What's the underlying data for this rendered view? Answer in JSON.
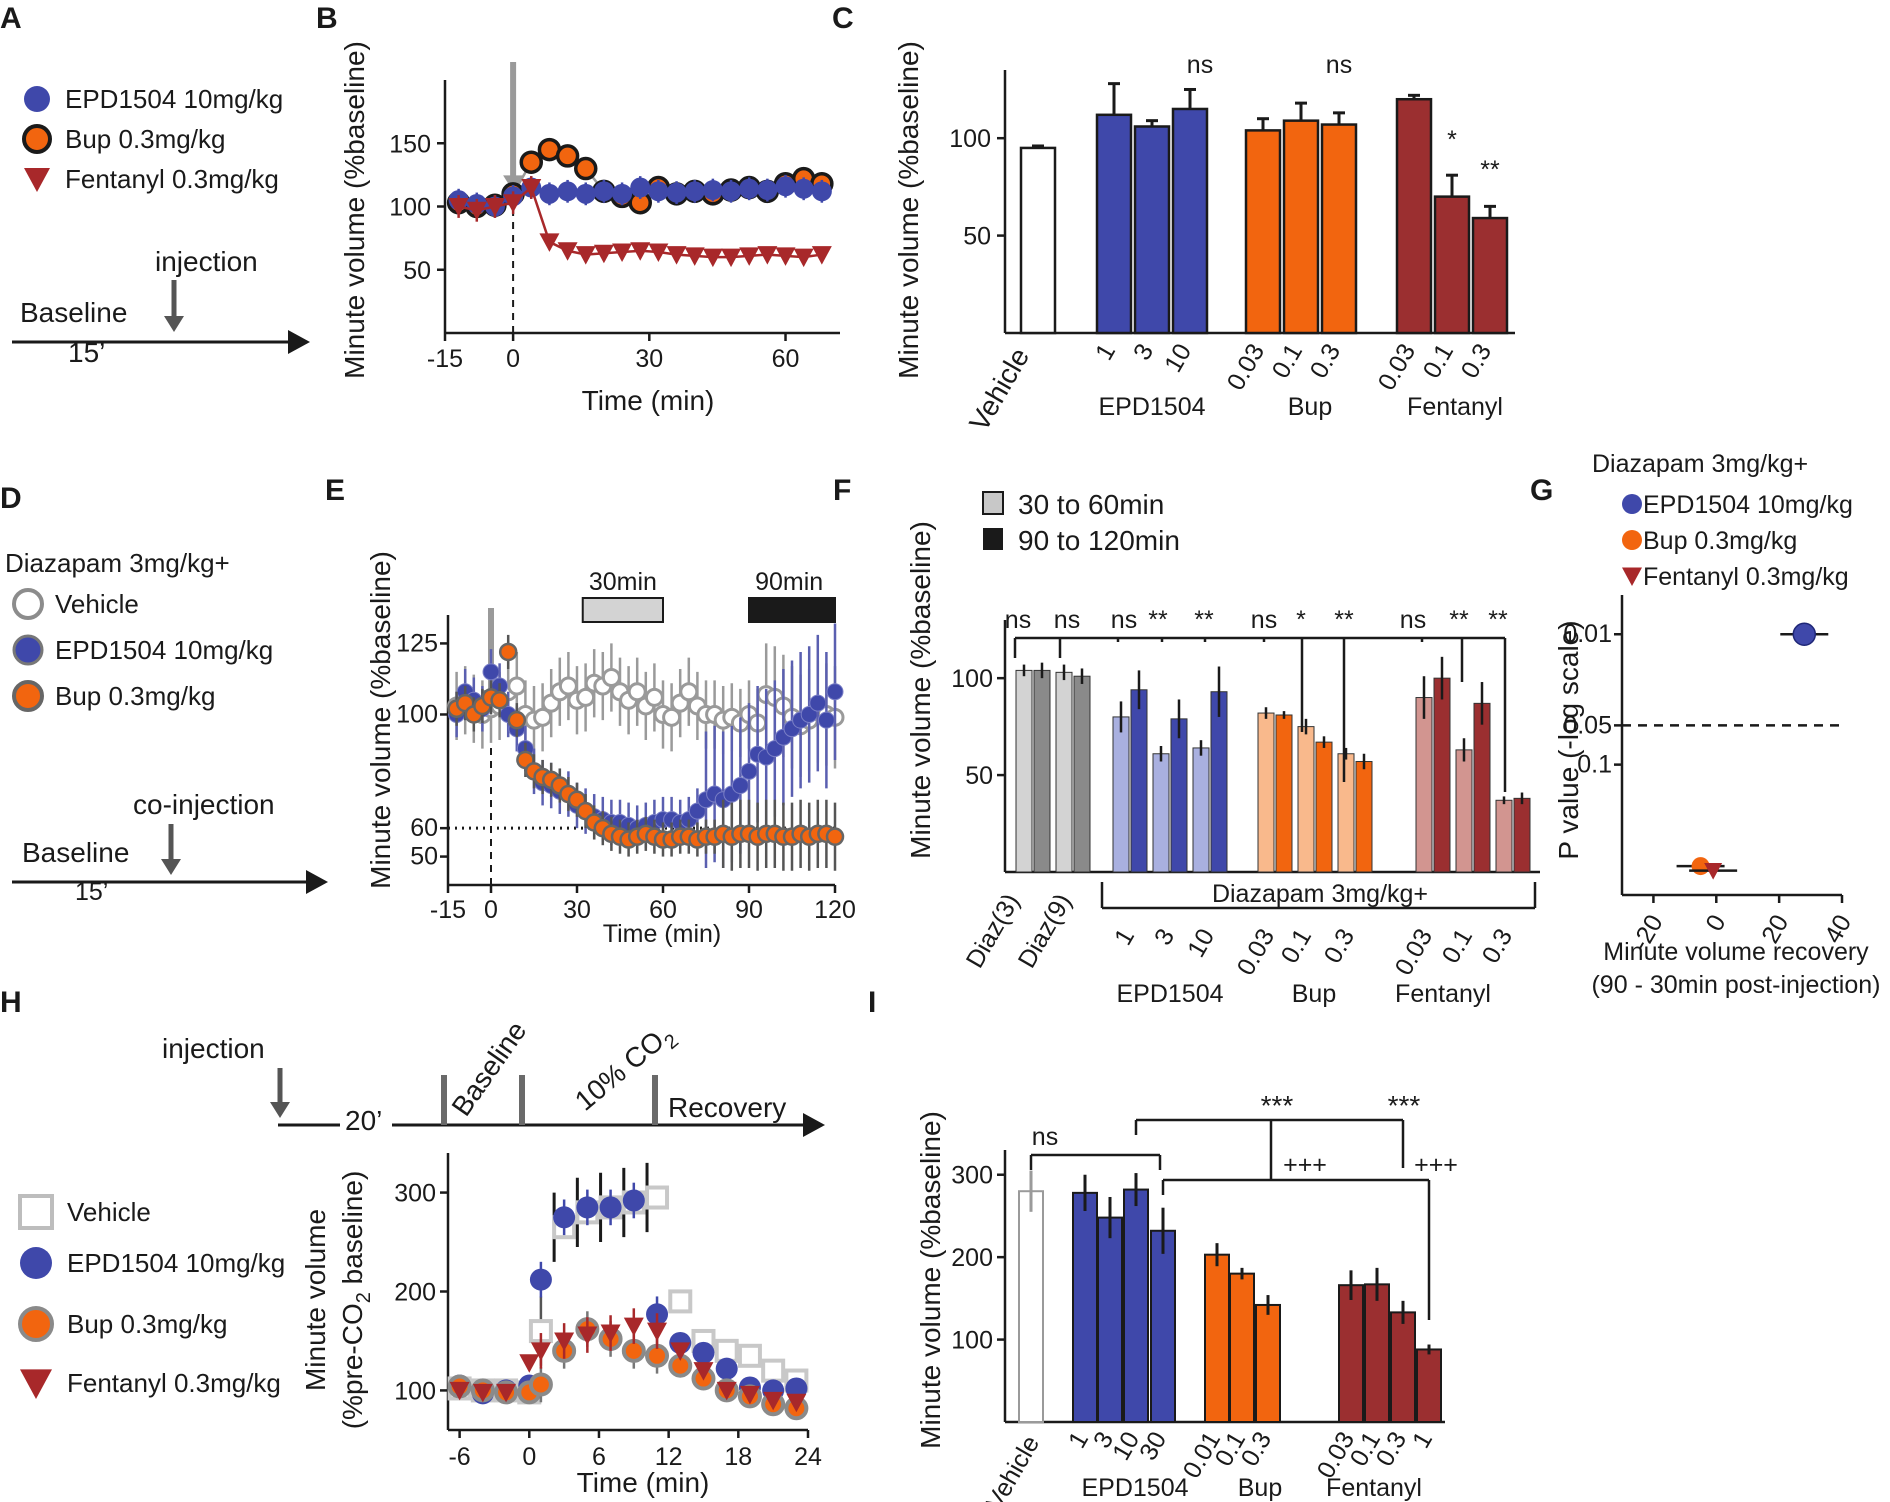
{
  "colors": {
    "blue": "#3F48AA",
    "orange": "#F2650F",
    "red": "#A8282A",
    "darkred": "#9B2F30",
    "grey": "#9a9a9a",
    "lightblue": "#A9B0E0",
    "lightorange": "#F9B98C",
    "lightred": "#D29590",
    "lightgrey": "#D3D3D3",
    "black": "#1a1a1a"
  },
  "panels": {
    "A": {
      "letter": "A",
      "legend": [
        "EPD1504 10mg/kg",
        "Bup 0.3mg/kg",
        "Fentanyl 0.3mg/kg"
      ],
      "injection": "injection",
      "baseline": "Baseline",
      "duration": "15’"
    },
    "B": {
      "letter": "B",
      "ylabel": "Minute volume (%baseline)",
      "xlabel": "Time (min)",
      "yticks": [
        "150",
        "100",
        "50"
      ],
      "xticks": [
        "-15",
        "0",
        "30",
        "60"
      ]
    },
    "C": {
      "letter": "C",
      "ylabel": "Minute volume (%baseline)",
      "yticks": [
        "100",
        "50"
      ],
      "groups": [
        "EPD1504",
        "Bup",
        "Fentanyl"
      ],
      "vehicle": "Vehicle",
      "doses": [
        "1",
        "3",
        "10",
        "0.03",
        "0.1",
        "0.3",
        "0.03",
        "0.1",
        "0.3"
      ],
      "stars": [
        "ns",
        "ns",
        "*",
        "**"
      ]
    },
    "D": {
      "letter": "D",
      "title": "Diazapam 3mg/kg+",
      "legend": [
        "Vehicle",
        "EPD1504 10mg/kg",
        "Bup 0.3mg/kg"
      ],
      "injection": "co-injection",
      "baseline": "Baseline",
      "duration": "15’"
    },
    "E": {
      "letter": "E",
      "ylabel": "Minute volume (%baseline)",
      "xlabel": "Time (min)",
      "yticks": [
        "125",
        "100",
        "60",
        "50"
      ],
      "xticks": [
        "-15",
        "0",
        "30",
        "60",
        "90",
        "120"
      ],
      "windows": [
        "30min",
        "90min"
      ]
    },
    "F": {
      "letter": "F",
      "ylabel": "Minute volume (%baseline)",
      "legend": [
        "30 to 60min",
        "90 to 120min"
      ],
      "yticks": [
        "100",
        "50"
      ],
      "controls": [
        "Diaz(3)",
        "Diaz(9)"
      ],
      "bracket": "Diazapam 3mg/kg+",
      "groups": [
        "EPD1504",
        "Bup",
        "Fentanyl"
      ],
      "doses": [
        "1",
        "3",
        "10",
        "0.03",
        "0.1",
        "0.3",
        "0.03",
        "0.1",
        "0.3"
      ],
      "stars": [
        "ns",
        "ns",
        "ns",
        "**",
        "**",
        "ns",
        "*",
        "**",
        "ns",
        "**",
        "**"
      ]
    },
    "G": {
      "letter": "G",
      "title": "Diazapam 3mg/kg+",
      "legend": [
        "EPD1504 10mg/kg",
        "Bup 0.3mg/kg",
        "Fentanyl 0.3mg/kg"
      ],
      "ylabel": "P value (-log scale)",
      "yticks": [
        "0.01",
        "0.05",
        "0.1"
      ],
      "xticks": [
        "-20",
        "0",
        "20",
        "40"
      ],
      "xlabel1": "Minute volume recovery",
      "xlabel2": "(90 - 30min post-injection)"
    },
    "H": {
      "letter": "H",
      "injection": "injection",
      "duration": "20’",
      "baseline": "Baseline",
      "co2": "10% CO",
      "co2sub": "2",
      "recovery": "Recovery",
      "legend": [
        "Vehicle",
        "EPD1504 10mg/kg",
        "Bup 0.3mg/kg",
        "Fentanyl 0.3mg/kg"
      ],
      "ylabel1": "Minute volume",
      "ylabel2": "(%pre-CO",
      "ylabel2sub": "2",
      "ylabel2end": " baseline)",
      "xlabel": "Time (min)",
      "yticks": [
        "300",
        "200",
        "100"
      ],
      "xticks": [
        "-6",
        "0",
        "6",
        "12",
        "18",
        "24"
      ]
    },
    "I": {
      "letter": "I",
      "ylabel": "Minute volume (%baseline)",
      "yticks": [
        "300",
        "200",
        "100"
      ],
      "vehicle": "Vehicle",
      "groups": [
        "EPD1504",
        "Bup",
        "Fentanyl"
      ],
      "doses": [
        "1",
        "3",
        "10",
        "30",
        "0.01",
        "0.1",
        "0.3",
        "0.03",
        "0.1",
        "0.3",
        "1"
      ],
      "stars": [
        "ns",
        "***",
        "***",
        "+++",
        "+++"
      ]
    }
  },
  "chart_data": [
    {
      "panel": "B",
      "type": "line",
      "xlabel": "Time (min)",
      "ylabel": "Minute volume (%baseline)",
      "xlim": [
        -15,
        72
      ],
      "ylim": [
        0,
        200
      ],
      "series": [
        {
          "name": "EPD1504 10mg/kg",
          "x": [
            -12,
            -8,
            -4,
            0,
            4,
            8,
            12,
            16,
            20,
            24,
            28,
            32,
            36,
            40,
            44,
            48,
            52,
            56,
            60,
            64,
            68
          ],
          "y": [
            105,
            102,
            100,
            108,
            115,
            110,
            112,
            110,
            112,
            110,
            115,
            112,
            111,
            112,
            113,
            112,
            114,
            113,
            116,
            114,
            112
          ]
        },
        {
          "name": "Bup 0.3mg/kg",
          "x": [
            -12,
            -8,
            -4,
            0,
            4,
            8,
            12,
            16,
            20,
            24,
            28,
            32,
            36,
            40,
            44,
            48,
            52,
            56,
            60,
            64,
            68
          ],
          "y": [
            103,
            100,
            101,
            110,
            135,
            145,
            140,
            130,
            112,
            108,
            103,
            115,
            110,
            112,
            110,
            113,
            115,
            112,
            118,
            122,
            118
          ]
        },
        {
          "name": "Fentanyl 0.3mg/kg",
          "x": [
            -12,
            -8,
            -4,
            0,
            4,
            8,
            12,
            16,
            20,
            24,
            28,
            32,
            36,
            40,
            44,
            48,
            52,
            56,
            60,
            64,
            68
          ],
          "y": [
            100,
            97,
            100,
            103,
            115,
            72,
            65,
            62,
            63,
            64,
            65,
            64,
            62,
            61,
            60,
            60,
            61,
            62,
            61,
            60,
            62
          ]
        }
      ]
    },
    {
      "panel": "C",
      "type": "bar",
      "ylabel": "Minute volume (%baseline)",
      "ylim": [
        0,
        135
      ],
      "categories": [
        "Vehicle",
        "EPD1504 1",
        "EPD1504 3",
        "EPD1504 10",
        "Bup 0.03",
        "Bup 0.1",
        "Bup 0.3",
        "Fentanyl 0.03",
        "Fentanyl 0.1",
        "Fentanyl 0.3"
      ],
      "values": [
        95,
        112,
        106,
        115,
        104,
        109,
        107,
        120,
        70,
        59
      ],
      "errors": [
        1,
        16,
        3,
        10,
        6,
        9,
        6,
        2,
        11,
        6
      ]
    },
    {
      "panel": "E",
      "type": "line",
      "xlabel": "Time (min)",
      "ylabel": "Minute volume (%baseline)",
      "xlim": [
        -15,
        120
      ],
      "ylim": [
        40,
        135
      ],
      "series": [
        {
          "name": "Vehicle",
          "x": [
            -12,
            -9,
            -6,
            -3,
            0,
            3,
            6,
            9,
            12,
            15,
            18,
            21,
            24,
            27,
            30,
            33,
            36,
            39,
            42,
            45,
            48,
            51,
            54,
            57,
            60,
            63,
            66,
            69,
            72,
            75,
            78,
            81,
            84,
            87,
            90,
            93,
            96,
            99,
            102,
            105,
            108,
            111,
            114,
            117,
            120
          ],
          "y": [
            103,
            105,
            102,
            100,
            102,
            103,
            108,
            110,
            100,
            98,
            99,
            104,
            108,
            110,
            105,
            106,
            111,
            110,
            113,
            108,
            105,
            108,
            103,
            106,
            100,
            99,
            104,
            108,
            103,
            100,
            100,
            98,
            99,
            97,
            100,
            97,
            107,
            106,
            103,
            99,
            96,
            98,
            101,
            100,
            99
          ]
        },
        {
          "name": "EPD1504 10mg/kg",
          "x": [
            -12,
            -9,
            -6,
            -3,
            0,
            3,
            6,
            9,
            12,
            15,
            18,
            21,
            24,
            27,
            30,
            33,
            36,
            39,
            42,
            45,
            48,
            51,
            54,
            57,
            60,
            63,
            66,
            69,
            72,
            75,
            78,
            81,
            84,
            87,
            90,
            93,
            96,
            99,
            102,
            105,
            108,
            111,
            114,
            117,
            120
          ],
          "y": [
            100,
            108,
            105,
            102,
            115,
            110,
            100,
            95,
            88,
            80,
            76,
            75,
            73,
            72,
            68,
            66,
            64,
            63,
            62,
            62,
            61,
            60,
            61,
            62,
            63,
            63,
            62,
            63,
            66,
            70,
            72,
            70,
            72,
            75,
            80,
            86,
            85,
            88,
            92,
            95,
            98,
            100,
            104,
            98,
            108
          ]
        },
        {
          "name": "Bup 0.3mg/kg",
          "x": [
            -12,
            -9,
            -6,
            -3,
            0,
            3,
            6,
            9,
            12,
            15,
            18,
            21,
            24,
            27,
            30,
            33,
            36,
            39,
            42,
            45,
            48,
            51,
            54,
            57,
            60,
            63,
            66,
            69,
            72,
            75,
            78,
            81,
            84,
            87,
            90,
            93,
            96,
            99,
            102,
            105,
            108,
            111,
            114,
            117,
            120
          ],
          "y": [
            102,
            104,
            100,
            103,
            106,
            105,
            122,
            98,
            84,
            80,
            78,
            77,
            75,
            72,
            70,
            66,
            62,
            60,
            58,
            57,
            56,
            57,
            58,
            57,
            56,
            56,
            57,
            57,
            56,
            57,
            57,
            58,
            57,
            58,
            58,
            57,
            58,
            58,
            57,
            57,
            58,
            57,
            58,
            58,
            57
          ]
        }
      ]
    },
    {
      "panel": "F",
      "type": "bar",
      "ylabel": "Minute volume (%baseline)",
      "ylim": [
        0,
        130
      ],
      "categories": [
        "Diaz(3)",
        "Diaz(9)",
        "EPD1504 1",
        "EPD1504 3",
        "EPD1504 10",
        "Bup 0.03",
        "Bup 0.1",
        "Bup 0.3",
        "Fentanyl 0.03",
        "Fentanyl 0.1",
        "Fentanyl 0.3"
      ],
      "series": [
        {
          "name": "30 to 60min",
          "values": [
            104,
            103,
            80,
            61,
            64,
            82,
            75,
            61,
            90,
            63,
            37
          ]
        },
        {
          "name": "90 to 120min",
          "values": [
            104,
            101,
            94,
            79,
            93,
            81,
            67,
            57,
            100,
            87,
            38
          ]
        }
      ]
    },
    {
      "panel": "G",
      "type": "scatter",
      "xlabel": "Minute volume recovery (90 - 30min post-injection)",
      "ylabel": "P value (-log scale)",
      "xlim": [
        -30,
        40
      ],
      "series": [
        {
          "name": "EPD1504 10mg/kg",
          "x": [
            28
          ],
          "y": [
            0.01
          ]
        },
        {
          "name": "Bup 0.3mg/kg",
          "x": [
            -5
          ],
          "y": [
            0.6
          ]
        },
        {
          "name": "Fentanyl 0.3mg/kg",
          "x": [
            -1
          ],
          "y": [
            0.65
          ]
        }
      ]
    },
    {
      "panel": "H",
      "type": "line",
      "xlabel": "Time (min)",
      "ylabel": "Minute volume (%pre-CO2 baseline)",
      "xlim": [
        -7,
        24
      ],
      "ylim": [
        60,
        340
      ],
      "series": [
        {
          "name": "Vehicle",
          "x": [
            -6,
            -4,
            -2,
            0,
            1,
            3,
            5,
            7,
            9,
            11,
            13,
            15,
            17,
            19,
            21,
            23
          ],
          "y": [
            102,
            100,
            100,
            98,
            160,
            265,
            280,
            285,
            290,
            295,
            190,
            150,
            140,
            135,
            120,
            110
          ]
        },
        {
          "name": "EPD1504 10mg/kg",
          "x": [
            -6,
            -4,
            -2,
            0,
            1,
            3,
            5,
            7,
            9,
            11,
            13,
            15,
            17,
            19,
            21,
            23
          ],
          "y": [
            105,
            97,
            100,
            105,
            212,
            275,
            285,
            285,
            292,
            177,
            148,
            138,
            122,
            103,
            100,
            102
          ]
        },
        {
          "name": "Bup 0.3mg/kg",
          "x": [
            -6,
            -4,
            -2,
            0,
            1,
            3,
            5,
            7,
            9,
            11,
            13,
            15,
            17,
            19,
            21,
            23
          ],
          "y": [
            104,
            100,
            98,
            98,
            106,
            140,
            162,
            152,
            140,
            135,
            125,
            112,
            100,
            94,
            86,
            82
          ]
        },
        {
          "name": "Fentanyl 0.3mg/kg",
          "x": [
            -6,
            -4,
            -2,
            0,
            1,
            3,
            5,
            7,
            9,
            11,
            13,
            15,
            17,
            19,
            21,
            23
          ],
          "y": [
            100,
            98,
            98,
            128,
            140,
            150,
            156,
            158,
            165,
            160,
            140,
            120,
            100,
            96,
            90,
            88
          ]
        }
      ]
    },
    {
      "panel": "I",
      "type": "bar",
      "ylabel": "Minute volume (%baseline)",
      "ylim": [
        0,
        330
      ],
      "categories": [
        "Vehicle",
        "EPD1504 1",
        "EPD1504 3",
        "EPD1504 10",
        "EPD1504 30",
        "Bup 0.01",
        "Bup 0.1",
        "Bup 0.3",
        "Fentanyl 0.03",
        "Fentanyl 0.1",
        "Fentanyl 0.3",
        "Fentanyl 1"
      ],
      "values": [
        280,
        278,
        248,
        282,
        232,
        203,
        180,
        142,
        166,
        167,
        133,
        88
      ],
      "errors": [
        25,
        22,
        25,
        20,
        28,
        14,
        7,
        12,
        18,
        20,
        14,
        6
      ]
    }
  ]
}
